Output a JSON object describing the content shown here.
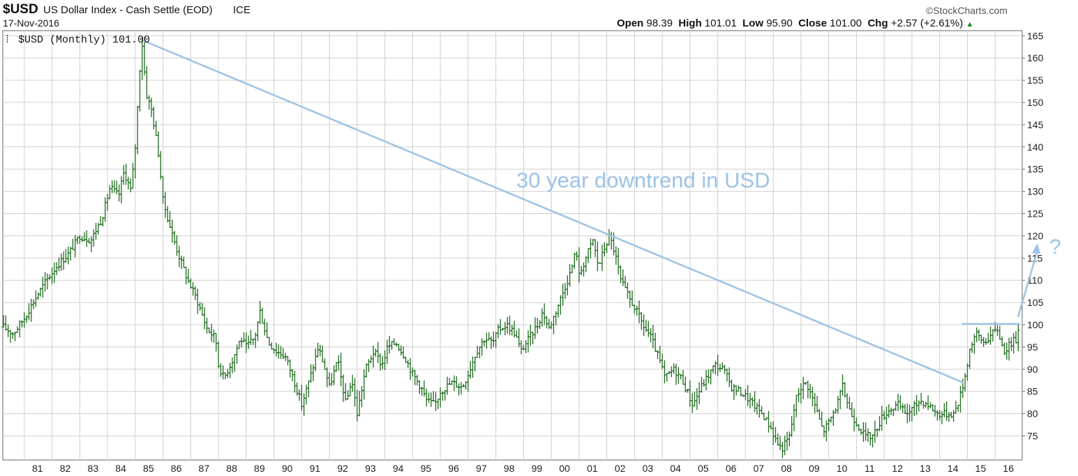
{
  "header": {
    "symbol": "$USD",
    "title": "US Dollar Index - Cash Settle (EOD)",
    "exchange": "ICE",
    "date": "17-Nov-2016",
    "brand": "©StockCharts.com",
    "open_label": "Open",
    "open": "98.39",
    "high_label": "High",
    "high": "101.01",
    "low_label": "Low",
    "low": "95.90",
    "close_label": "Close",
    "close": "101.00",
    "chg_label": "Chg",
    "chg": "+2.57 (+2.61%)",
    "chg_arrow": "▲"
  },
  "legend": "$USD (Monthly) 101.00",
  "annotation": "30 year downtrend in USD",
  "question": "?",
  "colors": {
    "price": "#1e6b1e",
    "trend": "#9dc3e6",
    "grid": "#d0d0d0",
    "axis": "#666666"
  },
  "chart_data": {
    "type": "ohlc",
    "title": "$USD (Monthly)",
    "ylim": [
      70,
      166
    ],
    "yticks": [
      75,
      80,
      85,
      90,
      95,
      100,
      105,
      110,
      115,
      120,
      125,
      130,
      135,
      140,
      145,
      150,
      155,
      160,
      165
    ],
    "xticks": [
      "81",
      "82",
      "83",
      "84",
      "85",
      "86",
      "87",
      "88",
      "89",
      "90",
      "91",
      "92",
      "93",
      "94",
      "95",
      "96",
      "97",
      "98",
      "99",
      "00",
      "01",
      "02",
      "03",
      "04",
      "05",
      "06",
      "07",
      "08",
      "09",
      "10",
      "11",
      "12",
      "13",
      "14",
      "15",
      "16"
    ],
    "x_start_year": 1980.25,
    "x_end_year": 2016.9,
    "price_path": [
      [
        1980.25,
        99.5
      ],
      [
        1980.6,
        98.0
      ],
      [
        1981.0,
        101.5
      ],
      [
        1981.4,
        106.0
      ],
      [
        1981.8,
        110.0
      ],
      [
        1982.2,
        113.5
      ],
      [
        1982.6,
        116.0
      ],
      [
        1983.0,
        120.0
      ],
      [
        1983.4,
        119.0
      ],
      [
        1983.8,
        124.0
      ],
      [
        1984.1,
        131.0
      ],
      [
        1984.4,
        129.0
      ],
      [
        1984.6,
        134.5
      ],
      [
        1984.85,
        130.0
      ],
      [
        1985.0,
        140.0
      ],
      [
        1985.17,
        158.0
      ],
      [
        1985.25,
        163.0
      ],
      [
        1985.4,
        152.0
      ],
      [
        1985.6,
        148.0
      ],
      [
        1985.85,
        138.0
      ],
      [
        1986.0,
        128.0
      ],
      [
        1986.3,
        121.0
      ],
      [
        1986.6,
        115.0
      ],
      [
        1986.9,
        110.0
      ],
      [
        1987.2,
        106.0
      ],
      [
        1987.6,
        99.0
      ],
      [
        1987.9,
        97.0
      ],
      [
        1988.0,
        91.0
      ],
      [
        1988.2,
        88.0
      ],
      [
        1988.5,
        92.0
      ],
      [
        1988.8,
        97.0
      ],
      [
        1989.0,
        95.0
      ],
      [
        1989.3,
        97.0
      ],
      [
        1989.5,
        103.0
      ],
      [
        1989.8,
        96.0
      ],
      [
        1990.1,
        94.0
      ],
      [
        1990.4,
        93.0
      ],
      [
        1990.7,
        88.0
      ],
      [
        1991.0,
        82.0
      ],
      [
        1991.3,
        88.0
      ],
      [
        1991.6,
        95.0
      ],
      [
        1991.8,
        91.0
      ],
      [
        1992.0,
        86.0
      ],
      [
        1992.3,
        92.0
      ],
      [
        1992.6,
        82.0
      ],
      [
        1992.8,
        88.0
      ],
      [
        1993.0,
        80.0
      ],
      [
        1993.3,
        90.0
      ],
      [
        1993.6,
        94.0
      ],
      [
        1993.9,
        91.0
      ],
      [
        1994.1,
        95.0
      ],
      [
        1994.4,
        96.0
      ],
      [
        1994.7,
        93.0
      ],
      [
        1995.0,
        89.0
      ],
      [
        1995.3,
        86.0
      ],
      [
        1995.5,
        83.0
      ],
      [
        1995.8,
        82.0
      ],
      [
        1996.0,
        85.0
      ],
      [
        1996.4,
        87.0
      ],
      [
        1996.8,
        86.0
      ],
      [
        1997.0,
        89.0
      ],
      [
        1997.3,
        94.0
      ],
      [
        1997.6,
        97.0
      ],
      [
        1997.9,
        96.0
      ],
      [
        1998.1,
        99.0
      ],
      [
        1998.4,
        100.0
      ],
      [
        1998.7,
        98.0
      ],
      [
        1998.9,
        94.0
      ],
      [
        1999.2,
        97.0
      ],
      [
        1999.5,
        100.0
      ],
      [
        1999.7,
        103.0
      ],
      [
        1999.9,
        99.0
      ],
      [
        2000.1,
        102.0
      ],
      [
        2000.4,
        107.0
      ],
      [
        2000.7,
        112.0
      ],
      [
        2000.9,
        117.0
      ],
      [
        2001.0,
        111.0
      ],
      [
        2001.3,
        116.0
      ],
      [
        2001.5,
        119.0
      ],
      [
        2001.7,
        113.0
      ],
      [
        2001.9,
        117.0
      ],
      [
        2002.1,
        120.0
      ],
      [
        2002.3,
        116.0
      ],
      [
        2002.5,
        110.0
      ],
      [
        2002.8,
        106.0
      ],
      [
        2003.0,
        104.0
      ],
      [
        2003.3,
        100.0
      ],
      [
        2003.6,
        97.0
      ],
      [
        2003.9,
        92.0
      ],
      [
        2004.1,
        88.0
      ],
      [
        2004.4,
        90.0
      ],
      [
        2004.7,
        88.0
      ],
      [
        2004.9,
        85.0
      ],
      [
        2005.1,
        82.0
      ],
      [
        2005.4,
        86.0
      ],
      [
        2005.7,
        89.0
      ],
      [
        2005.9,
        91.0
      ],
      [
        2006.2,
        90.0
      ],
      [
        2006.5,
        86.0
      ],
      [
        2006.8,
        85.0
      ],
      [
        2007.0,
        84.0
      ],
      [
        2007.3,
        82.0
      ],
      [
        2007.6,
        80.0
      ],
      [
        2007.9,
        77.0
      ],
      [
        2008.1,
        74.0
      ],
      [
        2008.3,
        72.0
      ],
      [
        2008.6,
        75.0
      ],
      [
        2008.8,
        83.0
      ],
      [
        2009.0,
        86.0
      ],
      [
        2009.2,
        87.0
      ],
      [
        2009.5,
        82.0
      ],
      [
        2009.8,
        76.0
      ],
      [
        2010.0,
        78.0
      ],
      [
        2010.3,
        82.0
      ],
      [
        2010.5,
        86.0
      ],
      [
        2010.8,
        80.0
      ],
      [
        2011.0,
        78.0
      ],
      [
        2011.3,
        75.0
      ],
      [
        2011.6,
        75.0
      ],
      [
        2011.9,
        79.0
      ],
      [
        2012.2,
        81.0
      ],
      [
        2012.5,
        82.0
      ],
      [
        2012.8,
        80.0
      ],
      [
        2013.0,
        81.0
      ],
      [
        2013.3,
        83.0
      ],
      [
        2013.6,
        82.0
      ],
      [
        2013.9,
        80.0
      ],
      [
        2014.2,
        80.0
      ],
      [
        2014.5,
        80.0
      ],
      [
        2014.7,
        83.0
      ],
      [
        2014.9,
        88.0
      ],
      [
        2015.1,
        95.0
      ],
      [
        2015.3,
        98.0
      ],
      [
        2015.6,
        96.0
      ],
      [
        2015.9,
        98.0
      ],
      [
        2016.1,
        99.0
      ],
      [
        2016.3,
        94.0
      ],
      [
        2016.6,
        96.0
      ],
      [
        2016.8,
        97.0
      ],
      [
        2016.88,
        101.0
      ]
    ],
    "trendline": [
      [
        1985.25,
        164.0
      ],
      [
        2014.85,
        87.0
      ]
    ],
    "resistance": [
      [
        2014.9,
        100.2
      ],
      [
        2016.9,
        100.2
      ]
    ],
    "arrow": [
      [
        2016.9,
        100.5
      ],
      [
        2017.15,
        118.0
      ]
    ],
    "annotation_at": [
      2000.0,
      128.0
    ]
  }
}
